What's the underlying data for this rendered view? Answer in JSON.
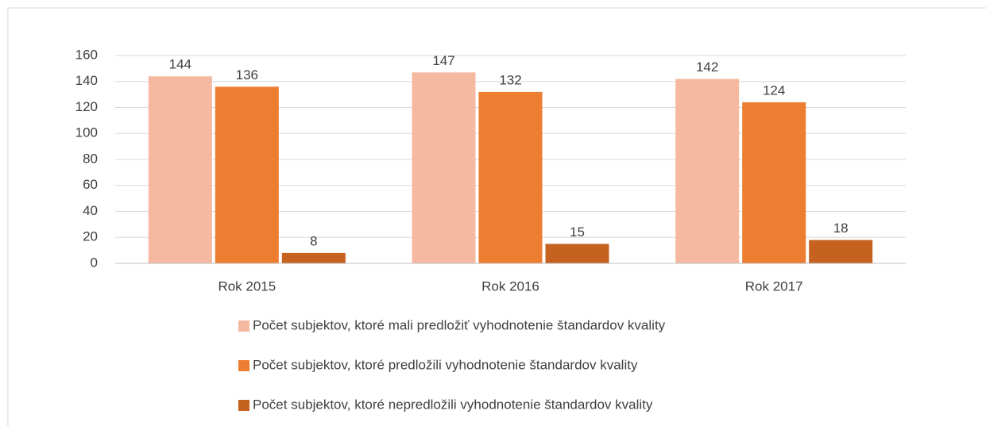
{
  "chart_data": {
    "type": "bar",
    "categories": [
      "Rok 2015",
      "Rok 2016",
      "Rok 2017"
    ],
    "series": [
      {
        "name": "Počet subjektov, ktoré mali predložiť vyhodnotenie štandardov kvality",
        "color": "#f4b9a0",
        "values": [
          144,
          147,
          142
        ]
      },
      {
        "name": "Počet subjektov, ktoré predložili vyhodnotenie štandardov kvality",
        "color": "#ed7d31",
        "values": [
          136,
          132,
          124
        ]
      },
      {
        "name": "Počet subjektov, ktoré nepredložili vyhodnotenie štandardov kvality",
        "color": "#c5621f",
        "values": [
          8,
          15,
          18
        ]
      }
    ],
    "ylim": [
      0,
      160
    ],
    "yticks": [
      0,
      20,
      40,
      60,
      80,
      100,
      120,
      140,
      160
    ],
    "grid": true,
    "legend": "bottom"
  }
}
